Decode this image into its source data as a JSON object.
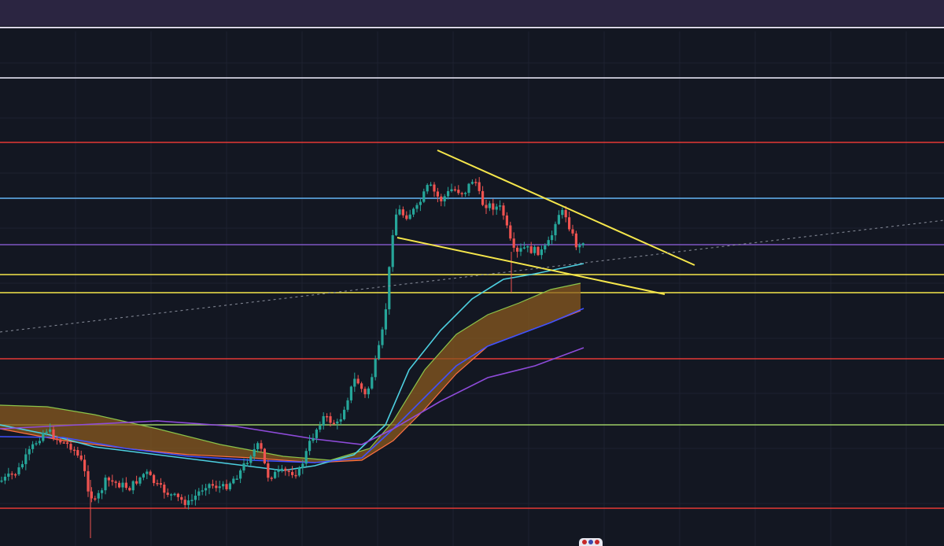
{
  "chart_data": {
    "type": "candlestick",
    "title": "",
    "xlabel": "",
    "ylabel": "",
    "grid": true,
    "legend": "none",
    "colors": {
      "background": "#131722",
      "grid": "#1e2230",
      "up_candle": "#26a69a",
      "down_candle": "#ef5350",
      "trendline": "#f5e64b",
      "ema_cyan": "#4dd0e1",
      "ema_blue": "#3f51ff",
      "ema_purple": "#8e4bd9",
      "cloud_fill": "#8a5a1f",
      "cloud_edge_top": "#8bc34a",
      "cloud_edge_bottom": "#ff7043"
    },
    "horizontal_levels": [
      {
        "value": 99,
        "color": "#f3f0ff"
      },
      {
        "value": 181,
        "color": "#e53935"
      },
      {
        "value": 252,
        "color": "#64b5f6"
      },
      {
        "value": 311,
        "color": "#7e57c2"
      },
      {
        "value": 349,
        "color": "#f5e64b"
      },
      {
        "value": 372,
        "color": "#f5e64b"
      },
      {
        "value": 456,
        "color": "#e53935"
      },
      {
        "value": 540,
        "color": "#9ccc65"
      },
      {
        "value": 646,
        "color": "#e53935"
      }
    ],
    "trendlines": [
      {
        "from": [
          556,
          191
        ],
        "to": [
          883,
          337
        ],
        "color": "#f5e64b"
      },
      {
        "from": [
          505,
          302
        ],
        "to": [
          845,
          374
        ],
        "color": "#f5e64b"
      },
      {
        "from": [
          0,
          422
        ],
        "to": [
          1200,
          280
        ],
        "color": "#8a8f9c",
        "dashed": true
      }
    ],
    "candles_anchor": [
      [
        0,
        612
      ],
      [
        22,
        600
      ],
      [
        40,
        570
      ],
      [
        58,
        545
      ],
      [
        75,
        560
      ],
      [
        92,
        568
      ],
      [
        105,
        590
      ],
      [
        112,
        620
      ],
      [
        120,
        640
      ],
      [
        135,
        610
      ],
      [
        150,
        615
      ],
      [
        165,
        620
      ],
      [
        185,
        600
      ],
      [
        200,
        618
      ],
      [
        218,
        630
      ],
      [
        240,
        640
      ],
      [
        262,
        615
      ],
      [
        285,
        620
      ],
      [
        305,
        600
      ],
      [
        320,
        575
      ],
      [
        330,
        565
      ],
      [
        340,
        605
      ],
      [
        360,
        600
      ],
      [
        380,
        600
      ],
      [
        395,
        560
      ],
      [
        410,
        530
      ],
      [
        430,
        540
      ],
      [
        440,
        510
      ],
      [
        452,
        480
      ],
      [
        465,
        505
      ],
      [
        475,
        470
      ],
      [
        485,
        430
      ],
      [
        492,
        380
      ],
      [
        498,
        300
      ],
      [
        505,
        265
      ],
      [
        515,
        275
      ],
      [
        530,
        265
      ],
      [
        545,
        235
      ],
      [
        560,
        255
      ],
      [
        575,
        240
      ],
      [
        590,
        245
      ],
      [
        603,
        225
      ],
      [
        612,
        258
      ],
      [
        625,
        262
      ],
      [
        638,
        265
      ],
      [
        648,
        305
      ],
      [
        655,
        325
      ],
      [
        665,
        315
      ],
      [
        675,
        318
      ],
      [
        690,
        320
      ],
      [
        700,
        305
      ],
      [
        708,
        272
      ],
      [
        718,
        270
      ],
      [
        728,
        300
      ],
      [
        735,
        318
      ],
      [
        742,
        303
      ]
    ],
    "series": [
      {
        "name": "",
        "color": "#4dd0e1",
        "points": [
          [
            0,
            540
          ],
          [
            60,
            552
          ],
          [
            120,
            568
          ],
          [
            200,
            578
          ],
          [
            280,
            588
          ],
          [
            360,
            598
          ],
          [
            400,
            592
          ],
          [
            450,
            578
          ],
          [
            490,
            540
          ],
          [
            520,
            470
          ],
          [
            560,
            420
          ],
          [
            600,
            380
          ],
          [
            640,
            355
          ],
          [
            680,
            348
          ],
          [
            742,
            335
          ]
        ]
      },
      {
        "name": "",
        "color": "#3f51ff",
        "points": [
          [
            0,
            555
          ],
          [
            80,
            556
          ],
          [
            160,
            570
          ],
          [
            240,
            580
          ],
          [
            320,
            585
          ],
          [
            400,
            588
          ],
          [
            460,
            582
          ],
          [
            500,
            545
          ],
          [
            540,
            505
          ],
          [
            580,
            465
          ],
          [
            620,
            440
          ],
          [
            660,
            425
          ],
          [
            700,
            410
          ],
          [
            742,
            392
          ]
        ]
      },
      {
        "name": "",
        "color": "#8e4bd9",
        "points": [
          [
            0,
            545
          ],
          [
            100,
            540
          ],
          [
            200,
            535
          ],
          [
            300,
            542
          ],
          [
            400,
            558
          ],
          [
            460,
            565
          ],
          [
            500,
            545
          ],
          [
            560,
            510
          ],
          [
            620,
            480
          ],
          [
            680,
            465
          ],
          [
            742,
            442
          ]
        ]
      }
    ],
    "cloud": {
      "top": [
        [
          0,
          515
        ],
        [
          60,
          517
        ],
        [
          120,
          527
        ],
        [
          200,
          545
        ],
        [
          280,
          565
        ],
        [
          360,
          580
        ],
        [
          420,
          585
        ],
        [
          470,
          570
        ],
        [
          500,
          535
        ],
        [
          540,
          470
        ],
        [
          580,
          425
        ],
        [
          620,
          400
        ],
        [
          660,
          385
        ],
        [
          700,
          368
        ],
        [
          738,
          360
        ]
      ],
      "bottom": [
        [
          0,
          545
        ],
        [
          80,
          560
        ],
        [
          160,
          570
        ],
        [
          240,
          578
        ],
        [
          320,
          582
        ],
        [
          400,
          588
        ],
        [
          460,
          585
        ],
        [
          500,
          560
        ],
        [
          540,
          520
        ],
        [
          580,
          475
        ],
        [
          620,
          440
        ],
        [
          660,
          425
        ],
        [
          700,
          410
        ],
        [
          738,
          395
        ]
      ]
    }
  }
}
